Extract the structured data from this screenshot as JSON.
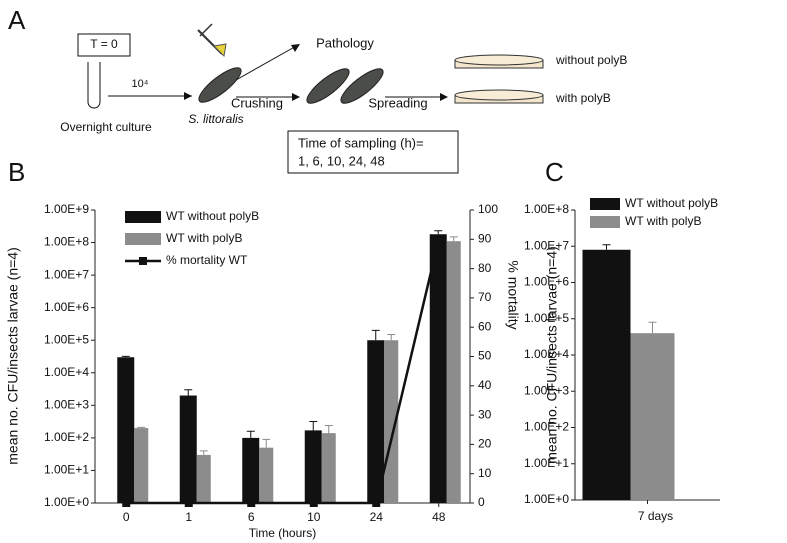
{
  "panel_a": {
    "label": "A",
    "start": "T = 0",
    "dose": "10⁴",
    "culture": "Overnight culture",
    "host": "S. littoralis",
    "pathology": "Pathology",
    "crushing": "Crushing",
    "spreading": "Spreading",
    "plate_without": "without polyB",
    "plate_with": "with polyB",
    "sampling_title": "Time of sampling (h)=",
    "sampling_times": "1, 6, 10, 24, 48"
  },
  "chart_data": [
    {
      "type": "bar",
      "panel_label": "B",
      "y_label": "mean no. CFU/insects larvae (n=4)",
      "y2_label": "% mortality",
      "x_label": "Time (hours)",
      "categories": [
        "0",
        "1",
        "6",
        "10",
        "24",
        "48"
      ],
      "log_scale": true,
      "legend": "upper left",
      "series": [
        {
          "name": "WT without polyB",
          "color": "#111111",
          "values": [
            30000,
            2000,
            100,
            170,
            100000,
            180000000
          ],
          "errors": [
            2000,
            1000,
            60,
            150,
            100000,
            50000000
          ]
        },
        {
          "name": "WT with polyB",
          "color": "#8c8c8c",
          "values": [
            200,
            30,
            50,
            140,
            100000,
            110000000
          ],
          "errors": [
            10,
            10,
            40,
            100,
            50000,
            40000000
          ]
        },
        {
          "name": "% mortality WT",
          "color": "#111111",
          "type": "line",
          "axis": "y2",
          "values": [
            0,
            0,
            0,
            0,
            0,
            90
          ]
        }
      ],
      "ylim": [
        1,
        1000000000
      ],
      "yticks": [
        {
          "value": 1,
          "label": "1.00E+0"
        },
        {
          "value": 10,
          "label": "1.00E+1"
        },
        {
          "value": 100,
          "label": "1.00E+2"
        },
        {
          "value": 1000,
          "label": "1.00E+3"
        },
        {
          "value": 10000,
          "label": "1.00E+4"
        },
        {
          "value": 100000,
          "label": "1.00E+5"
        },
        {
          "value": 1000000,
          "label": "1.00E+6"
        },
        {
          "value": 10000000,
          "label": "1.00E+7"
        },
        {
          "value": 100000000,
          "label": "1.00E+8"
        },
        {
          "value": 1000000000,
          "label": "1.00E+9"
        }
      ],
      "y2lim": [
        0,
        100
      ],
      "y2ticks": [
        0,
        10,
        20,
        30,
        40,
        50,
        60,
        70,
        80,
        90,
        100
      ]
    },
    {
      "type": "bar",
      "panel_label": "C",
      "y_label": "mean no. CFU/insects larvae (n=4)",
      "categories": [
        "7 days"
      ],
      "log_scale": true,
      "legend": "upper left",
      "series": [
        {
          "name": "WT without polyB",
          "color": "#111111",
          "values": [
            8000000
          ],
          "errors": [
            3000000
          ]
        },
        {
          "name": "WT with polyB",
          "color": "#8c8c8c",
          "values": [
            40000
          ],
          "errors": [
            40000
          ]
        }
      ],
      "ylim": [
        1,
        100000000
      ],
      "yticks": [
        {
          "value": 1,
          "label": "1.00E+0"
        },
        {
          "value": 10,
          "label": "1.00E+1"
        },
        {
          "value": 100,
          "label": "1.00E+2"
        },
        {
          "value": 1000,
          "label": "1.00E+3"
        },
        {
          "value": 10000,
          "label": "1.00E+4"
        },
        {
          "value": 100000,
          "label": "1.00E+5"
        },
        {
          "value": 1000000,
          "label": "1.00E+6"
        },
        {
          "value": 10000000,
          "label": "1.00E+7"
        },
        {
          "value": 100000000,
          "label": "1.00E+8"
        }
      ]
    }
  ]
}
